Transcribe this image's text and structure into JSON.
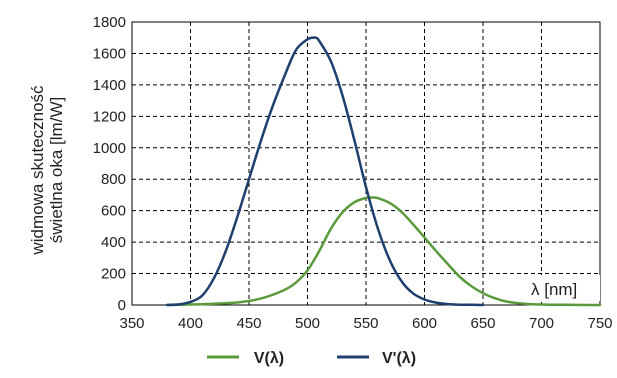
{
  "chart_data": {
    "type": "line",
    "title": "",
    "ylabel_lines": [
      "widmowa skuteczność",
      "świetlna oka [lm/W]"
    ],
    "x_axis_label": "λ [nm]",
    "xlim": [
      350,
      750
    ],
    "ylim": [
      0,
      1800
    ],
    "x_ticks": [
      350,
      400,
      450,
      500,
      550,
      600,
      650,
      700,
      750
    ],
    "y_ticks": [
      0,
      200,
      400,
      600,
      800,
      1000,
      1200,
      1400,
      1600,
      1800
    ],
    "grid": true,
    "legend_position": "bottom",
    "series": [
      {
        "name": "V(λ)",
        "color": "#5a9a3c",
        "x": [
          380,
          400,
          420,
          440,
          460,
          480,
          490,
          500,
          510,
          520,
          530,
          540,
          550,
          555,
          560,
          570,
          580,
          590,
          600,
          610,
          620,
          630,
          640,
          650,
          660,
          670,
          680,
          690,
          700,
          720,
          740,
          750
        ],
        "y": [
          0,
          3,
          8,
          16,
          41,
          95,
          142,
          220,
          343,
          485,
          590,
          653,
          681,
          683,
          680,
          650,
          595,
          515,
          430,
          342,
          260,
          180,
          120,
          75,
          43,
          22,
          12,
          6,
          3,
          1,
          0,
          0
        ]
      },
      {
        "name": "V'(λ)",
        "color": "#1f3f6e",
        "x": [
          380,
          390,
          400,
          410,
          420,
          430,
          440,
          450,
          460,
          470,
          480,
          490,
          500,
          505,
          507,
          510,
          520,
          530,
          540,
          550,
          560,
          570,
          580,
          590,
          600,
          610,
          620,
          630,
          640,
          650
        ],
        "y": [
          0,
          4,
          20,
          60,
          170,
          340,
          560,
          800,
          1040,
          1260,
          1450,
          1620,
          1690,
          1700,
          1700,
          1680,
          1550,
          1330,
          1050,
          750,
          490,
          290,
          155,
          75,
          35,
          15,
          6,
          2,
          1,
          0
        ]
      }
    ]
  }
}
